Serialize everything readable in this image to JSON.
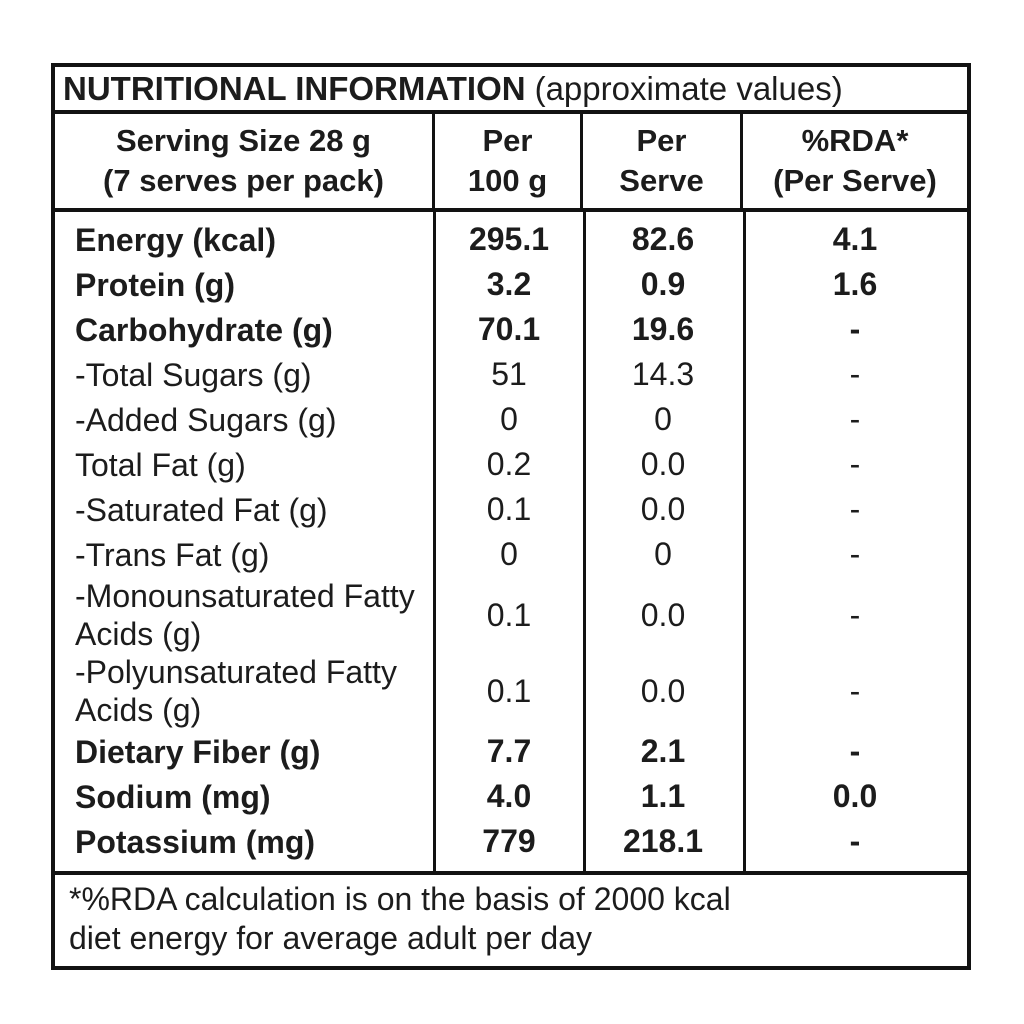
{
  "colors": {
    "text": "#1c1c1c",
    "border": "#121212",
    "background": "#ffffff"
  },
  "title": {
    "main": "NUTRITIONAL INFORMATION",
    "suffix": "(approximate values)"
  },
  "columns": {
    "serving": {
      "line1": "Serving Size 28 g",
      "line2": "(7 serves per pack)"
    },
    "per100": {
      "line1": "Per",
      "line2": "100 g"
    },
    "perServe": {
      "line1": "Per",
      "line2": "Serve"
    },
    "rda": {
      "line1": "%RDA*",
      "line2": "(Per Serve)"
    }
  },
  "rows": [
    {
      "label": "Energy (kcal)",
      "per100": "295.1",
      "perServe": "82.6",
      "rda": "4.1"
    },
    {
      "label": "Protein (g)",
      "per100": "3.2",
      "perServe": "0.9",
      "rda": "1.6"
    },
    {
      "label": "Carbohydrate (g)",
      "per100": "70.1",
      "perServe": "19.6",
      "rda": "-"
    },
    {
      "label": "-Total Sugars (g)",
      "per100": "51",
      "perServe": "14.3",
      "rda": "-"
    },
    {
      "label": "-Added Sugars (g)",
      "per100": "0",
      "perServe": "0",
      "rda": "-"
    },
    {
      "label": "Total Fat (g)",
      "per100": "0.2",
      "perServe": "0.0",
      "rda": "-"
    },
    {
      "label": "-Saturated Fat (g)",
      "per100": "0.1",
      "perServe": "0.0",
      "rda": "-"
    },
    {
      "label": "-Trans Fat (g)",
      "per100": "0",
      "perServe": "0",
      "rda": "-"
    },
    {
      "label": "-Monounsaturated Fatty Acids (g)",
      "per100": "0.1",
      "perServe": "0.0",
      "rda": "-"
    },
    {
      "label": "-Polyunsaturated Fatty Acids (g)",
      "per100": "0.1",
      "perServe": "0.0",
      "rda": "-"
    },
    {
      "label": "Dietary Fiber (g)",
      "per100": "7.7",
      "perServe": "2.1",
      "rda": "-"
    },
    {
      "label": "Sodium (mg)",
      "per100": "4.0",
      "perServe": "1.1",
      "rda": "0.0"
    },
    {
      "label": "Potassium (mg)",
      "per100": "779",
      "perServe": "218.1",
      "rda": "-"
    }
  ],
  "footnote": {
    "line1": "*%RDA calculation is on the basis of 2000 kcal",
    "line2": "diet energy for average adult per day"
  }
}
